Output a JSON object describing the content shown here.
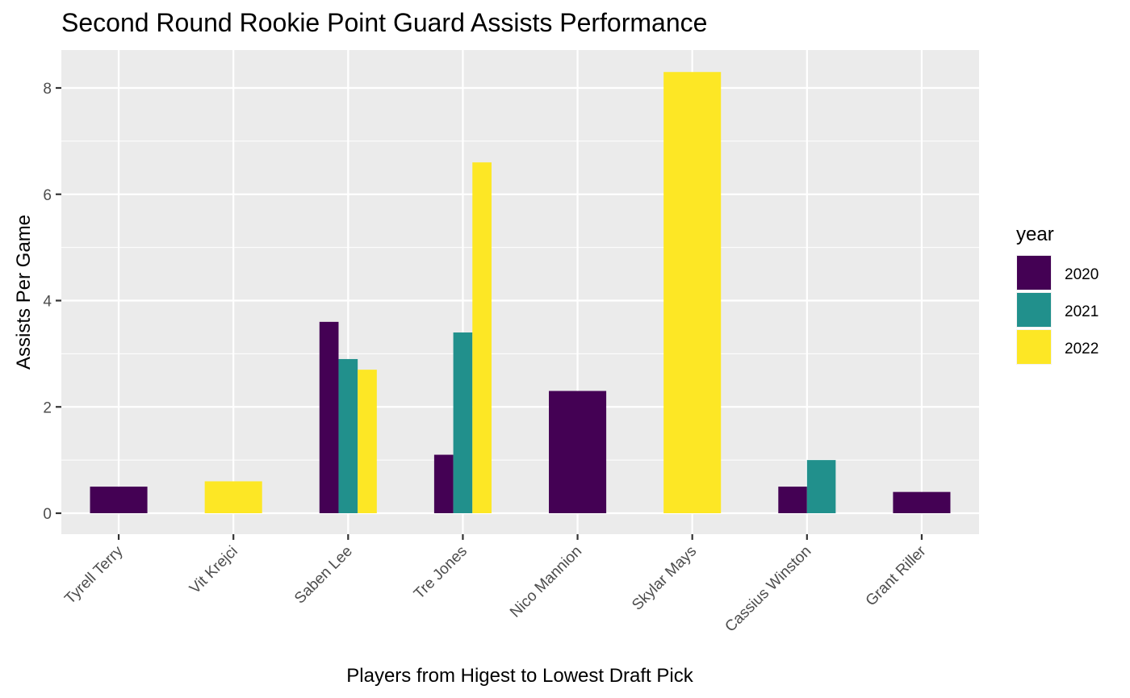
{
  "chart_data": {
    "type": "bar",
    "title": "Second Round Rookie Point Guard Assists Performance",
    "xlabel": "Players from Higest to Lowest Draft Pick",
    "ylabel": "Assists Per Game",
    "ylim": [
      -0.4,
      8.75
    ],
    "yticks": [
      0,
      2,
      4,
      6,
      8
    ],
    "ytick_labels": [
      "0",
      "2",
      "4",
      "6",
      "8"
    ],
    "grid": true,
    "legend": {
      "title": "year",
      "position": "right"
    },
    "categories": [
      "Tyrell Terry",
      "Vit Krejci",
      "Saben Lee",
      "Tre Jones",
      "Nico Mannion",
      "Skylar Mays",
      "Cassius Winston",
      "Grant Riller"
    ],
    "series": [
      {
        "name": "2020",
        "color": "#440154",
        "values": [
          0.5,
          null,
          3.6,
          1.1,
          2.3,
          null,
          0.5,
          0.4
        ]
      },
      {
        "name": "2021",
        "color": "#21908C",
        "values": [
          null,
          null,
          2.9,
          3.4,
          null,
          null,
          1.0,
          null
        ]
      },
      {
        "name": "2022",
        "color": "#FDE725",
        "values": [
          null,
          0.6,
          2.7,
          6.6,
          null,
          8.3,
          null,
          null
        ]
      }
    ]
  }
}
